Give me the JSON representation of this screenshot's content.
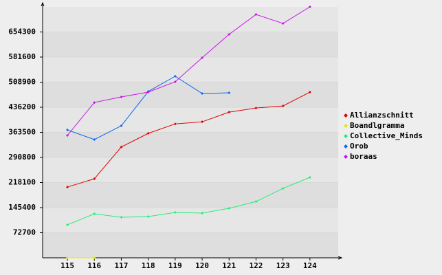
{
  "chart_data": {
    "type": "line",
    "x": [
      115,
      116,
      117,
      118,
      119,
      120,
      121,
      122,
      123,
      124
    ],
    "xlim": [
      114.08,
      125.05
    ],
    "xticks": [
      115,
      116,
      117,
      118,
      119,
      120,
      121,
      122,
      123,
      124
    ],
    "ylim": [
      0,
      727000
    ],
    "yticks": [
      72700,
      145400,
      218100,
      290800,
      363500,
      436200,
      508900,
      581600,
      654300
    ],
    "grid": true,
    "legend": "right",
    "series": [
      {
        "name": "Allianzschnitt",
        "color": "#e00000",
        "values": [
          205000,
          229000,
          321000,
          360500,
          388000,
          394000,
          422000,
          434000,
          440000,
          480000
        ]
      },
      {
        "name": "Boandlgramma",
        "color": "#e8e800",
        "values": [
          0,
          0,
          null,
          null,
          null,
          null,
          null,
          null,
          null,
          null
        ]
      },
      {
        "name": "Collective_Minds",
        "color": "#22ee77",
        "values": [
          95600,
          127500,
          117500,
          119500,
          131500,
          129500,
          143400,
          163000,
          201000,
          233000
        ]
      },
      {
        "name": "Orob",
        "color": "#1166ee",
        "values": [
          370500,
          342600,
          382500,
          482000,
          526000,
          476000,
          478000,
          null,
          null,
          null
        ]
      },
      {
        "name": "boraas",
        "color": "#cc11ee",
        "values": [
          354600,
          450000,
          466000,
          480000,
          510000,
          579500,
          647400,
          705000,
          679000,
          727000
        ]
      }
    ]
  }
}
